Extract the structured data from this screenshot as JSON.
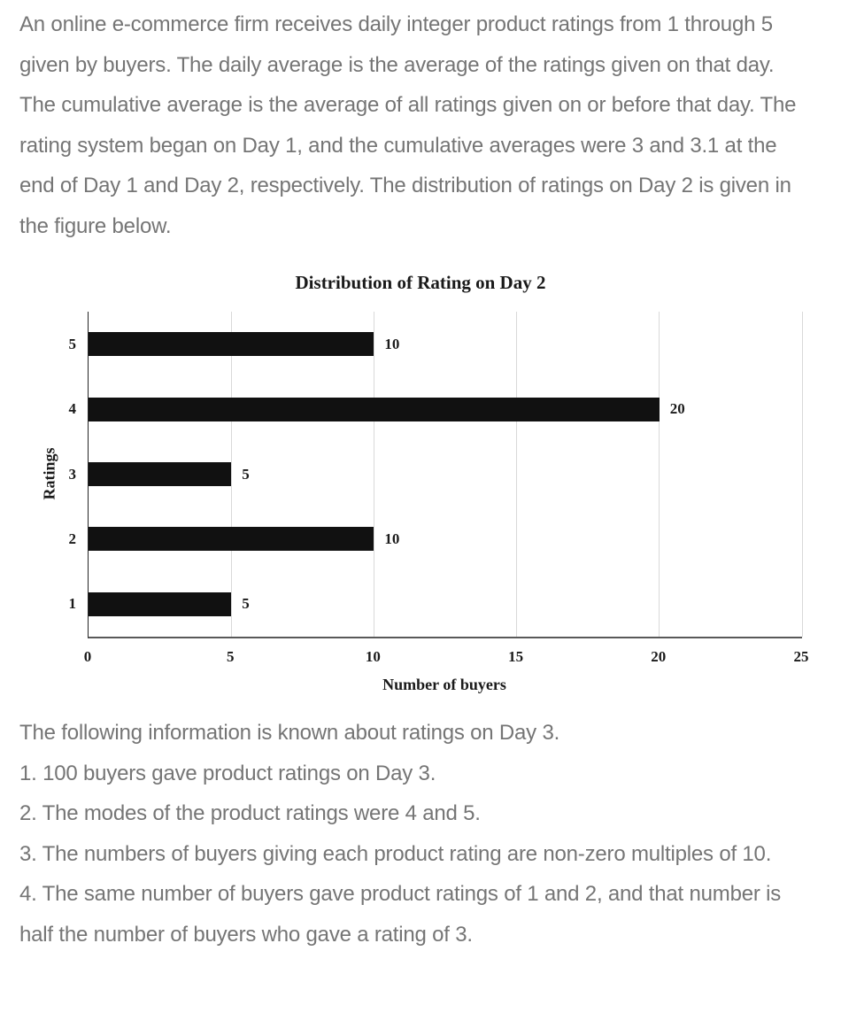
{
  "page": {
    "background": "#ffffff",
    "body_text_color": "#757575",
    "chart_text_color": "#1a1a1a"
  },
  "intro": {
    "text": "An online e-commerce firm receives daily integer product ratings from 1 through 5 given by buyers. The daily average is the average of the ratings given on that day. The cumulative average is the average of all ratings given on or before that day. The rating system began on Day 1, and the cumulative averages were 3 and 3.1 at the end of Day 1 and Day 2, respectively. The distribution of ratings on Day 2 is given in the figure below."
  },
  "chart_data": {
    "type": "bar",
    "orientation": "horizontal",
    "title": "Distribution of Rating on Day 2",
    "ylabel": "Ratings",
    "xlabel": "Number of buyers",
    "categories": [
      "5",
      "4",
      "3",
      "2",
      "1"
    ],
    "values": [
      10,
      20,
      5,
      10,
      5
    ],
    "data_labels": [
      "10",
      "20",
      "5",
      "10",
      "5"
    ],
    "xlim": [
      0,
      25
    ],
    "xticks": [
      0,
      5,
      10,
      15,
      20,
      25
    ],
    "grid": true,
    "legend_position": "none",
    "bar_color": "#111111",
    "gridline_color": "#d9d9d9"
  },
  "day3": {
    "heading": "The following information is known about ratings on Day 3.",
    "items": [
      "1. 100 buyers gave product ratings on Day 3.",
      "2. The modes of the product ratings were 4 and 5.",
      "3. The numbers of buyers giving each product rating are non-zero multiples of 10.",
      "4. The same number of buyers gave product ratings of 1 and 2, and that number is half the number of buyers who gave a rating of 3."
    ]
  }
}
